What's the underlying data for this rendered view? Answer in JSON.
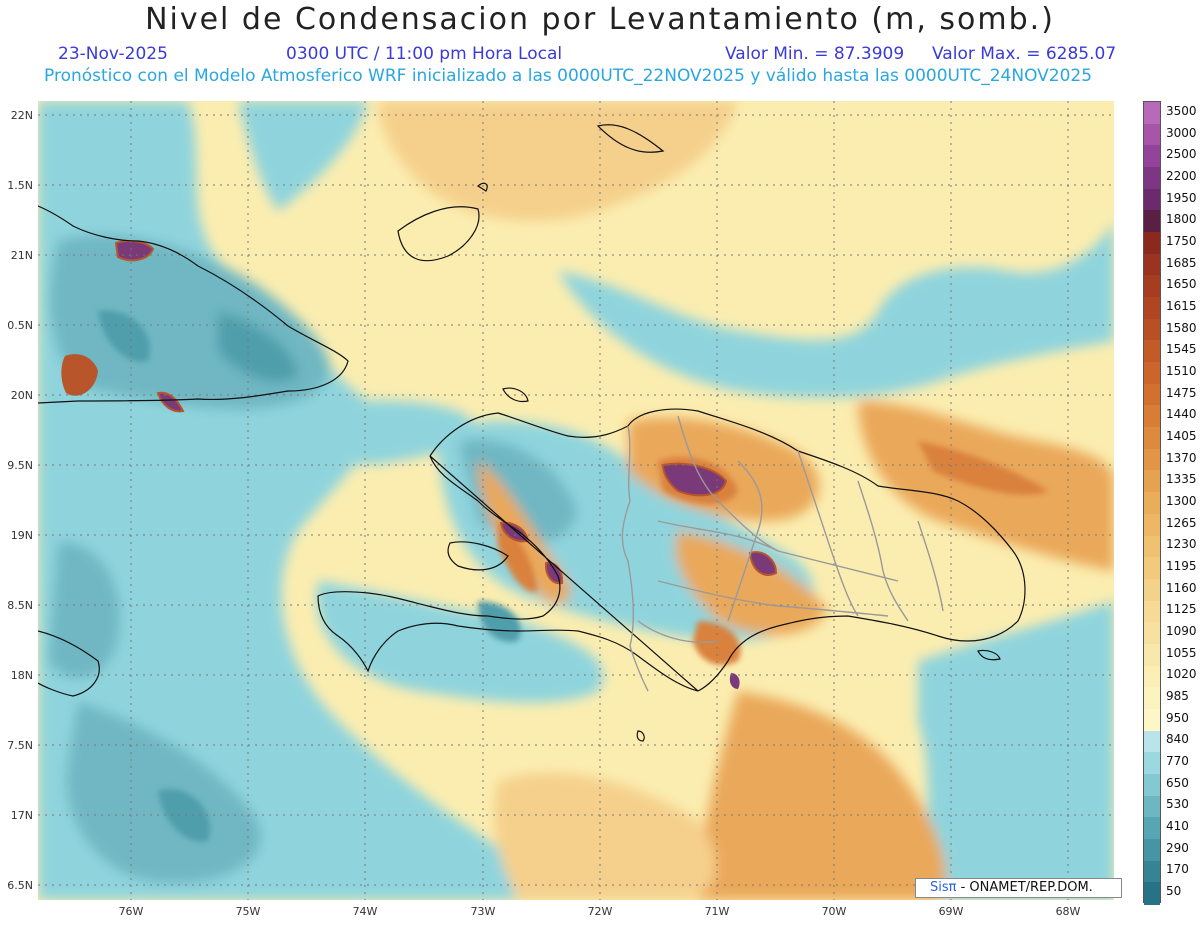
{
  "header": {
    "title": "Nivel de Condensacion por Levantamiento (m, somb.)",
    "date": "23-Nov-2025",
    "time": "0300 UTC / 11:00 pm Hora Local",
    "valmin": "Valor Min. = 87.3909",
    "valmax": "Valor Max. = 6285.07",
    "forecast": "Pronóstico con el Modelo Atmosferico WRF inicializado a las 0000UTC_22NOV2025 y válido hasta las  0000UTC_24NOV2025"
  },
  "axes": {
    "lat_labels": [
      "22N",
      "1.5N",
      "21N",
      "0.5N",
      "20N",
      "9.5N",
      "19N",
      "8.5N",
      "18N",
      "7.5N",
      "17N",
      "6.5N"
    ],
    "lon_labels": [
      "76W",
      "75W",
      "74W",
      "73W",
      "72W",
      "71W",
      "70W",
      "69W",
      "68W"
    ]
  },
  "colorbar": {
    "labels": [
      "3500",
      "3000",
      "2500",
      "2200",
      "1950",
      "1800",
      "1750",
      "1685",
      "1650",
      "1615",
      "1580",
      "1545",
      "1510",
      "1475",
      "1440",
      "1405",
      "1370",
      "1335",
      "1300",
      "1265",
      "1230",
      "1195",
      "1160",
      "1125",
      "1090",
      "1055",
      "1020",
      "985",
      "950",
      "840",
      "770",
      "650",
      "530",
      "410",
      "290",
      "170",
      "50"
    ],
    "colors": [
      "#b86ab8",
      "#a755a8",
      "#93449a",
      "#7d3584",
      "#6a2a6c",
      "#5a1f45",
      "#8a2a1e",
      "#9a3420",
      "#a63c20",
      "#b14522",
      "#ba4f25",
      "#c35a28",
      "#cb652c",
      "#d27030",
      "#d87c36",
      "#de8a3d",
      "#e29645",
      "#e6a250",
      "#eaad5a",
      "#edb765",
      "#f0c171",
      "#f2ca7d",
      "#f4d289",
      "#f6da95",
      "#f8e1a0",
      "#f9e8ab",
      "#fbefb6",
      "#fcf3bf",
      "#fdf7c8",
      "#b8e4ea",
      "#9cd8e0",
      "#84c8d2",
      "#6db7c3",
      "#57a6b3",
      "#4595a4",
      "#358494",
      "#277385"
    ]
  },
  "map": {
    "colors": {
      "ocean_cyan": "#8fd4dd",
      "teal": "#6fb7c3",
      "teal_dark": "#4f9eab",
      "yellow": "#fbedb0",
      "light_orange": "#f5d08c",
      "orange": "#eaa85a",
      "dark_orange": "#d9813e",
      "rust": "#b8552a",
      "purple": "#7a3a7a",
      "coast": "#111111",
      "border": "#9a9a9a"
    }
  },
  "credit": {
    "brand": "Sisπ",
    "text": " - ONAMET/REP.DOM."
  }
}
